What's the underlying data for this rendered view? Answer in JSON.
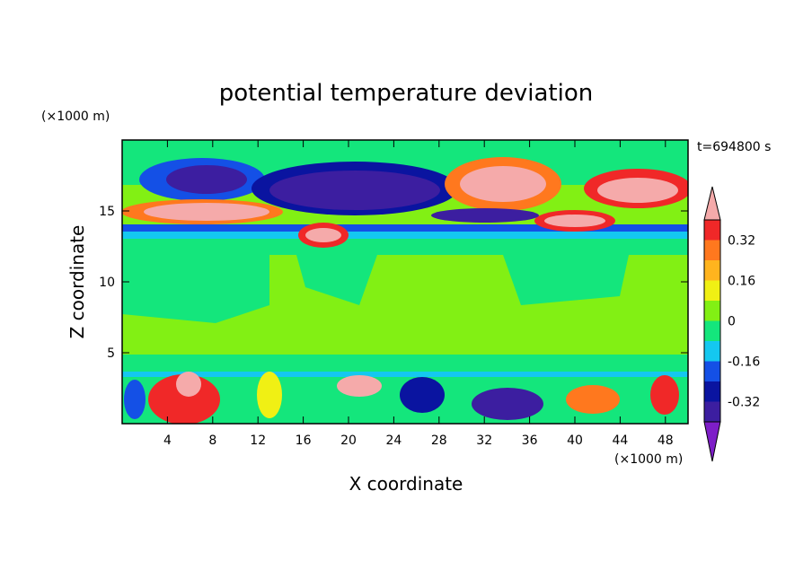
{
  "chart_data": {
    "type": "heatmap",
    "title": "potential temperature deviation",
    "xlabel": "X coordinate",
    "ylabel": "Z coordinate",
    "x_scale_label": "(×1000 m)",
    "y_scale_label": "(×1000 m)",
    "time_label": "t=694800 s",
    "xlim": [
      0,
      50
    ],
    "ylim": [
      0,
      20
    ],
    "x_ticks": [
      "4",
      "8",
      "12",
      "16",
      "20",
      "24",
      "28",
      "32",
      "36",
      "40",
      "44",
      "48"
    ],
    "y_ticks": [
      "5",
      "10",
      "15"
    ],
    "colorbar": {
      "levels": [
        -0.4,
        -0.32,
        -0.24,
        -0.16,
        -0.08,
        0,
        0.08,
        0.16,
        0.24,
        0.32,
        0.4
      ],
      "colors": [
        "#7e1ec8",
        "#3c1ea0",
        "#0a14a0",
        "#1450e6",
        "#14c8f0",
        "#14e67c",
        "#82f014",
        "#f0f014",
        "#ffb41e",
        "#ff781e",
        "#f02828",
        "#f5aaaa"
      ],
      "tick_labels": [
        "0.32",
        "0.16",
        "0",
        "-0.16",
        "-0.32"
      ],
      "tick_label_values": [
        0.32,
        0.16,
        0,
        -0.16,
        -0.32
      ]
    }
  }
}
